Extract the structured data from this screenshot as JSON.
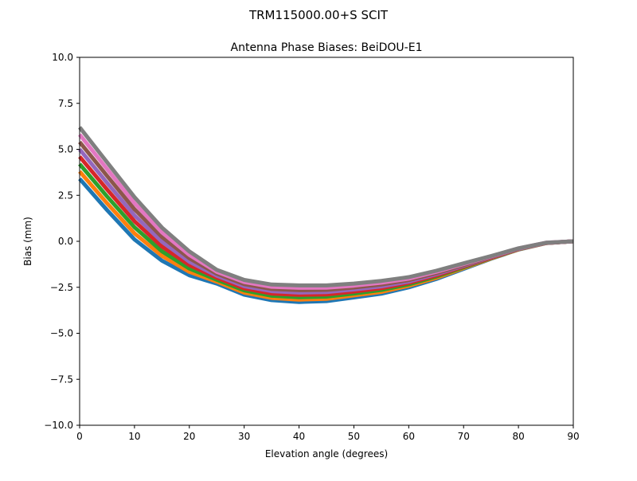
{
  "chart_data": {
    "type": "line",
    "suptitle": "TRM115000.00+S  SCIT",
    "title": "Antenna Phase Biases: BeiDOU-E1",
    "xlabel": "Elevation angle (degrees)",
    "ylabel": "Bias (mm)",
    "xlim": [
      0,
      90
    ],
    "ylim": [
      -10,
      10
    ],
    "xticks": [
      0,
      10,
      20,
      30,
      40,
      50,
      60,
      70,
      80,
      90
    ],
    "yticks": [
      -10.0,
      -7.5,
      -5.0,
      -2.5,
      0.0,
      2.5,
      5.0,
      7.5,
      10.0
    ],
    "ytick_labels": [
      "−10.0",
      "−7.5",
      "−5.0",
      "−2.5",
      "0.0",
      "2.5",
      "5.0",
      "7.5",
      "10.0"
    ],
    "grid": false,
    "x": [
      0,
      5,
      10,
      15,
      20,
      25,
      30,
      35,
      40,
      45,
      50,
      55,
      60,
      65,
      70,
      75,
      80,
      85,
      90
    ],
    "colors": [
      "#1f77b4",
      "#ff7f0e",
      "#2ca02c",
      "#d62728",
      "#9467bd",
      "#8c564b",
      "#e377c2",
      "#7f7f7f",
      "#bcbd22",
      "#17becf"
    ],
    "series": [
      {
        "values": [
          3.4,
          1.7,
          0.1,
          -1.05,
          -1.85,
          -2.3,
          -2.9,
          -3.2,
          -3.3,
          -3.25,
          -3.05,
          -2.85,
          -2.5,
          -2.05,
          -1.5,
          -0.95,
          -0.45,
          -0.1,
          0
        ]
      },
      {
        "values": [
          3.8,
          2.07,
          0.43,
          -0.79,
          -1.66,
          -2.19,
          -2.79,
          -3.08,
          -3.17,
          -3.13,
          -2.94,
          -2.75,
          -2.42,
          -1.99,
          -1.46,
          -0.93,
          -0.44,
          -0.1,
          0
        ]
      },
      {
        "values": [
          4.2,
          2.44,
          0.76,
          -0.54,
          -1.48,
          -2.09,
          -2.67,
          -2.96,
          -3.04,
          -3.01,
          -2.84,
          -2.65,
          -2.34,
          -1.92,
          -1.41,
          -0.91,
          -0.43,
          -0.09,
          0
        ]
      },
      {
        "values": [
          4.6,
          2.82,
          1.09,
          -0.28,
          -1.29,
          -1.98,
          -2.56,
          -2.84,
          -2.91,
          -2.89,
          -2.73,
          -2.55,
          -2.26,
          -1.86,
          -1.37,
          -0.89,
          -0.42,
          -0.09,
          0
        ]
      },
      {
        "values": [
          5.0,
          3.18,
          1.41,
          -0.02,
          -1.11,
          -1.87,
          -2.44,
          -2.71,
          -2.79,
          -2.76,
          -2.62,
          -2.45,
          -2.19,
          -1.79,
          -1.33,
          -0.86,
          -0.41,
          -0.09,
          0
        ]
      },
      {
        "values": [
          5.4,
          3.56,
          1.74,
          0.24,
          -0.92,
          -1.76,
          -2.33,
          -2.59,
          -2.66,
          -2.64,
          -2.51,
          -2.35,
          -2.11,
          -1.73,
          -1.29,
          -0.84,
          -0.4,
          -0.09,
          0
        ]
      },
      {
        "values": [
          5.8,
          3.93,
          2.07,
          0.49,
          -0.74,
          -1.66,
          -2.21,
          -2.47,
          -2.53,
          -2.52,
          -2.41,
          -2.25,
          -2.03,
          -1.66,
          -1.24,
          -0.82,
          -0.39,
          -0.08,
          0
        ]
      },
      {
        "values": [
          6.2,
          4.3,
          2.4,
          0.75,
          -0.55,
          -1.55,
          -2.1,
          -2.35,
          -2.4,
          -2.4,
          -2.3,
          -2.15,
          -1.95,
          -1.6,
          -1.2,
          -0.8,
          -0.38,
          -0.08,
          0
        ]
      }
    ]
  }
}
